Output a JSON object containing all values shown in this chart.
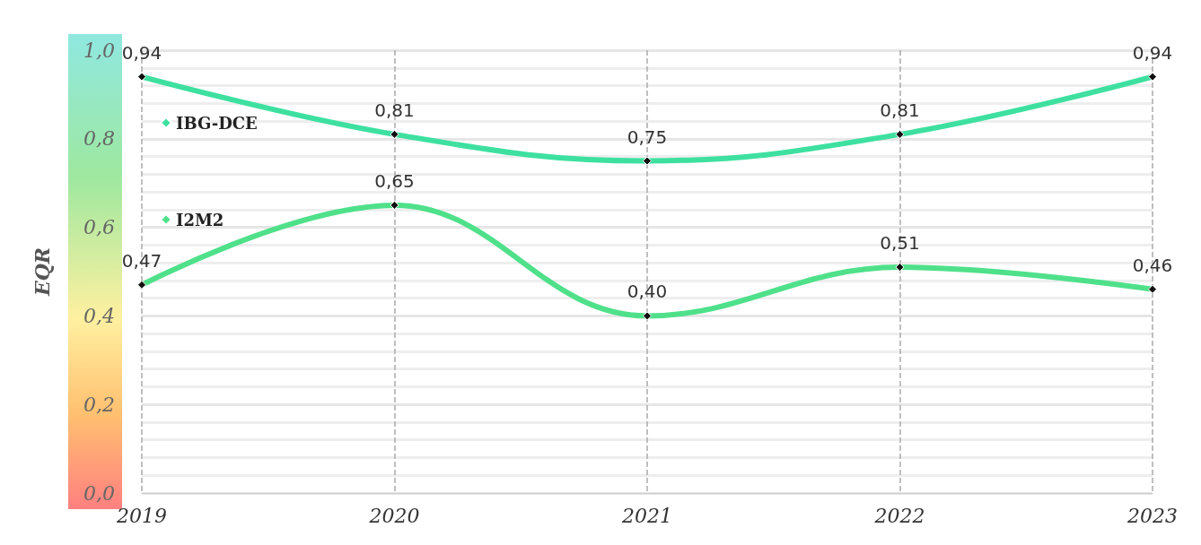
{
  "chart_data": {
    "type": "line",
    "ylabel": "EQR",
    "categories": [
      "2019",
      "2020",
      "2021",
      "2022",
      "2023"
    ],
    "series": [
      {
        "name": "IBG-DCE",
        "color": "#3ee0a0",
        "values": [
          0.94,
          0.81,
          0.75,
          0.81,
          0.94
        ],
        "value_labels": [
          "0,94",
          "0,81",
          "0,75",
          "0,81",
          "0,94"
        ]
      },
      {
        "name": "I2M2",
        "color": "#4fe08a",
        "values": [
          0.47,
          0.65,
          0.4,
          0.51,
          0.46
        ],
        "value_labels": [
          "0,47",
          "0,65",
          "0,40",
          "0,51",
          "0,46"
        ]
      }
    ],
    "ylim": [
      0,
      1
    ],
    "yticks": [
      {
        "value": 0,
        "label": "0,0"
      },
      {
        "value": 0.2,
        "label": "0,2"
      },
      {
        "value": 0.4,
        "label": "0,4"
      },
      {
        "value": 0.6,
        "label": "0,6"
      },
      {
        "value": 0.8,
        "label": "0,8"
      },
      {
        "value": 1,
        "label": "1,0"
      }
    ],
    "grid": true,
    "legend": "top left",
    "marker": "diamond",
    "line_style": "solid"
  }
}
